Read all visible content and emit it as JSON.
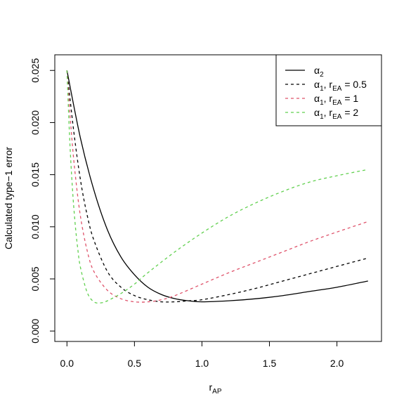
{
  "chart_data": {
    "type": "line",
    "xlabel": "r",
    "xlabel_sub": "AP",
    "ylabel": "Calculated type−1 error",
    "xlim": [
      -0.09,
      2.33
    ],
    "ylim": [
      -0.001,
      0.0265
    ],
    "x_ticks": [
      0.0,
      0.5,
      1.0,
      1.5,
      2.0
    ],
    "x_tick_labels": [
      "0.0",
      "0.5",
      "1.0",
      "1.5",
      "2.0"
    ],
    "y_ticks": [
      0.0,
      0.005,
      0.01,
      0.015,
      0.02,
      0.025
    ],
    "y_tick_labels": [
      "0.000",
      "0.005",
      "0.010",
      "0.015",
      "0.020",
      "0.025"
    ],
    "grid": false,
    "legend_position": "top-right",
    "series": [
      {
        "name": "α2",
        "legend": {
          "main": "α",
          "sub": "2",
          "rest": ""
        },
        "color": "#000000",
        "dash": "solid",
        "x": [
          0,
          0.1,
          0.2,
          0.3,
          0.4,
          0.5,
          0.6,
          0.7,
          0.8,
          0.9,
          1.0,
          1.2,
          1.4,
          1.6,
          1.8,
          2.0,
          2.23
        ],
        "y": [
          0.025,
          0.0185,
          0.0135,
          0.0097,
          0.0071,
          0.0054,
          0.0042,
          0.0035,
          0.0031,
          0.0029,
          0.0028,
          0.0029,
          0.0031,
          0.0034,
          0.0038,
          0.0042,
          0.0048
        ]
      },
      {
        "name": "α1, rEA = 0.5",
        "legend": {
          "main": "α",
          "sub": "1",
          "rest": ", r",
          "sub2": "EA",
          "value": " = 0.5"
        },
        "color": "#000000",
        "dash": "dashed",
        "x": [
          0,
          0.05,
          0.1,
          0.15,
          0.2,
          0.3,
          0.4,
          0.5,
          0.6,
          0.7,
          0.8,
          0.9,
          1.0,
          1.2,
          1.4,
          1.6,
          1.8,
          2.0,
          2.23
        ],
        "y": [
          0.025,
          0.0192,
          0.0145,
          0.0111,
          0.0087,
          0.0057,
          0.0042,
          0.0034,
          0.003,
          0.0028,
          0.0028,
          0.0029,
          0.003,
          0.0035,
          0.0041,
          0.0048,
          0.0055,
          0.0062,
          0.007
        ]
      },
      {
        "name": "α1, rEA = 1",
        "legend": {
          "main": "α",
          "sub": "1",
          "rest": ", r",
          "sub2": "EA",
          "value": " = 1"
        },
        "color": "#DF536B",
        "dash": "dashed",
        "x": [
          0,
          0.03,
          0.06,
          0.1,
          0.15,
          0.2,
          0.3,
          0.4,
          0.5,
          0.6,
          0.7,
          0.8,
          1.0,
          1.2,
          1.4,
          1.6,
          1.8,
          2.0,
          2.23
        ],
        "y": [
          0.025,
          0.0195,
          0.0152,
          0.011,
          0.0077,
          0.0057,
          0.0039,
          0.0031,
          0.0028,
          0.0028,
          0.003,
          0.0034,
          0.0045,
          0.0056,
          0.0066,
          0.0076,
          0.0086,
          0.0095,
          0.0105
        ]
      },
      {
        "name": "α1, rEA = 2",
        "legend": {
          "main": "α",
          "sub": "1",
          "rest": ", r",
          "sub2": "EA",
          "value": " = 2"
        },
        "color": "#61D04F",
        "dash": "dashed",
        "x": [
          0,
          0.02,
          0.04,
          0.06,
          0.08,
          0.1,
          0.15,
          0.2,
          0.25,
          0.3,
          0.4,
          0.5,
          0.6,
          0.8,
          1.0,
          1.2,
          1.4,
          1.6,
          1.8,
          2.0,
          2.23
        ],
        "y": [
          0.025,
          0.0185,
          0.0138,
          0.0104,
          0.0079,
          0.0061,
          0.0037,
          0.0028,
          0.0027,
          0.0029,
          0.0036,
          0.0045,
          0.0056,
          0.0076,
          0.0094,
          0.011,
          0.0123,
          0.0134,
          0.0143,
          0.0149,
          0.0155
        ]
      }
    ]
  }
}
